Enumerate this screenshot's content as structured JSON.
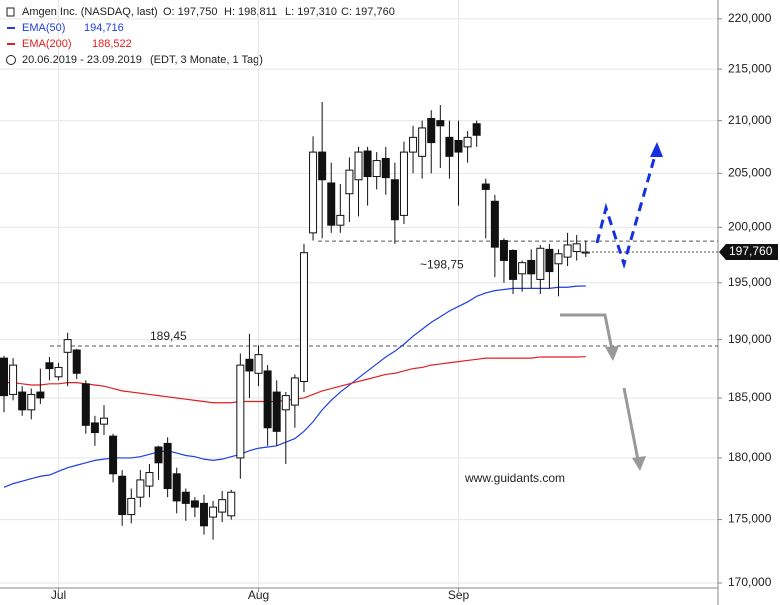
{
  "header": {
    "title": "Amgen Inc. (NASDAQ, last)",
    "open": "O: 197,750",
    "high": "H: 198,811",
    "low": "L: 197,310",
    "close": "C: 197,760",
    "range": "20.06.2019 - 23.09.2019",
    "range_note": "(EDT, 3 Monate, 1 Tag)"
  },
  "chart_data": {
    "type": "candlestick",
    "categories": [
      null,
      null,
      null,
      null,
      null,
      null,
      "Jul",
      null,
      null,
      null,
      null,
      null,
      null,
      null,
      null,
      null,
      null,
      null,
      null,
      null,
      null,
      null,
      null,
      null,
      null,
      null,
      null,
      null,
      "Aug",
      null,
      null,
      null,
      null,
      null,
      null,
      null,
      null,
      null,
      null,
      null,
      null,
      null,
      null,
      null,
      null,
      null,
      null,
      null,
      null,
      null,
      "Sep",
      null,
      null,
      null,
      null,
      null,
      null,
      null,
      null,
      null,
      null,
      null,
      null,
      null,
      null
    ],
    "open": [
      188.4,
      185.3,
      185.5,
      184.0,
      185.5,
      188.0,
      186.8,
      188.9,
      189.1,
      186.2,
      182.9,
      182.8,
      181.8,
      178.5,
      175.4,
      176.8,
      177.7,
      180.9,
      181.2,
      178.7,
      177.2,
      176.5,
      176.3,
      175.2,
      175.6,
      175.3,
      180.0,
      188.3,
      187.1,
      187.3,
      185.5,
      184.0,
      184.4,
      186.4,
      199.5,
      207.0,
      204.1,
      200.2,
      203.1,
      204.4,
      207.1,
      204.7,
      206.4,
      204.4,
      201.1,
      207.0,
      206.6,
      210.2,
      210.0,
      208.4,
      208.1,
      207.5,
      209.7,
      204.0,
      202.4,
      198.8,
      197.9,
      195.8,
      197.0,
      195.3,
      198.0,
      196.7,
      197.3,
      197.8,
      197.75
    ],
    "high": [
      188.6,
      188.4,
      186.0,
      185.8,
      187.5,
      188.5,
      188.0,
      190.6,
      189.2,
      186.5,
      183.5,
      184.4,
      182.0,
      179.0,
      177.5,
      179.0,
      179.5,
      181.0,
      181.7,
      179.2,
      177.5,
      176.8,
      177.0,
      176.5,
      177.3,
      177.4,
      188.8,
      190.5,
      189.5,
      187.8,
      186.5,
      185.5,
      187.0,
      198.5,
      208.5,
      211.8,
      206.0,
      204.0,
      206.5,
      207.5,
      207.5,
      207.0,
      207.5,
      206.0,
      208.0,
      209.5,
      210.0,
      211.0,
      211.5,
      210.0,
      210.0,
      209.0,
      210.0,
      204.5,
      203.0,
      199.0,
      198.0,
      197.0,
      198.0,
      198.4,
      198.5,
      198.0,
      199.5,
      199.3,
      198.811
    ],
    "low": [
      183.8,
      184.8,
      183.5,
      183.2,
      184.5,
      186.5,
      186.5,
      186.0,
      186.6,
      182.0,
      181.0,
      181.9,
      178.0,
      174.5,
      174.7,
      176.0,
      176.8,
      178.2,
      176.8,
      175.5,
      174.9,
      175.2,
      173.8,
      173.4,
      174.8,
      175.0,
      178.3,
      185.0,
      186.0,
      181.0,
      181.0,
      179.5,
      182.5,
      185.5,
      198.8,
      199.0,
      199.5,
      199.5,
      200.5,
      201.0,
      202.0,
      203.5,
      203.0,
      198.5,
      200.3,
      205.0,
      204.5,
      205.0,
      205.5,
      204.5,
      202.0,
      206.0,
      207.5,
      199.0,
      195.5,
      195.0,
      194.0,
      194.2,
      194.5,
      194.0,
      194.5,
      193.8,
      196.5,
      197.0,
      197.31
    ],
    "close": [
      185.2,
      187.8,
      184.0,
      185.3,
      185.0,
      187.5,
      187.6,
      190.0,
      187.1,
      182.7,
      182.1,
      183.3,
      178.7,
      175.4,
      176.7,
      178.2,
      178.8,
      179.6,
      177.5,
      176.5,
      176.3,
      176.0,
      174.5,
      176.0,
      176.6,
      177.2,
      187.8,
      187.3,
      188.7,
      182.5,
      182.2,
      185.2,
      186.7,
      197.7,
      207.0,
      204.4,
      200.2,
      201.1,
      205.3,
      207.0,
      204.7,
      206.2,
      204.6,
      200.7,
      207.0,
      208.4,
      209.3,
      207.9,
      209.5,
      206.6,
      207.0,
      208.4,
      208.6,
      203.5,
      198.2,
      197.0,
      195.3,
      196.8,
      195.8,
      198.1,
      196.0,
      197.6,
      198.4,
      198.5,
      197.76
    ],
    "series": [
      {
        "name": "EMA(50)",
        "legend_value": "194,716",
        "color": "#1f3fe0",
        "values": [
          177.6,
          177.9,
          178.1,
          178.3,
          178.5,
          178.6,
          178.9,
          179.2,
          179.4,
          179.6,
          179.8,
          179.9,
          180.0,
          180.0,
          180.0,
          180.1,
          180.3,
          180.5,
          180.6,
          180.4,
          180.2,
          180.1,
          179.9,
          179.8,
          179.9,
          180.1,
          180.3,
          180.6,
          180.8,
          180.9,
          181.0,
          181.3,
          181.6,
          182.2,
          183.0,
          184.0,
          184.8,
          185.5,
          186.1,
          186.7,
          187.3,
          187.9,
          188.5,
          189.0,
          189.6,
          190.3,
          190.9,
          191.5,
          192.0,
          192.5,
          192.9,
          193.3,
          193.8,
          194.1,
          194.3,
          194.4,
          194.5,
          194.5,
          194.5,
          194.5,
          194.5,
          194.6,
          194.6,
          194.7,
          194.716
        ]
      },
      {
        "name": "EMA(200)",
        "legend_value": "188,522",
        "color": "#e02020",
        "values": [
          186.3,
          186.3,
          186.2,
          186.1,
          186.1,
          186.2,
          186.2,
          186.3,
          186.3,
          186.2,
          186.1,
          186.0,
          185.8,
          185.6,
          185.5,
          185.4,
          185.3,
          185.2,
          185.1,
          185.0,
          184.9,
          184.8,
          184.7,
          184.6,
          184.6,
          184.6,
          184.7,
          184.7,
          184.7,
          184.7,
          184.7,
          184.8,
          184.9,
          185.0,
          185.3,
          185.6,
          185.8,
          186.0,
          186.2,
          186.4,
          186.6,
          186.8,
          187.0,
          187.1,
          187.3,
          187.5,
          187.6,
          187.8,
          187.9,
          188.0,
          188.1,
          188.2,
          188.3,
          188.4,
          188.4,
          188.4,
          188.4,
          188.4,
          188.4,
          188.5,
          188.5,
          188.5,
          188.5,
          188.5,
          188.522
        ]
      }
    ],
    "levels": [
      {
        "value": 189.45,
        "label": "189,45"
      },
      {
        "value": 198.75,
        "label": "~198,75"
      }
    ],
    "last_price": {
      "value": 197.76,
      "label": "197,760"
    },
    "ylim": [
      168.3,
      221.9
    ],
    "log_scale": true,
    "grid": true,
    "yticks": [
      {
        "value": 170,
        "label": "170,000"
      },
      {
        "value": 175,
        "label": "175,000"
      },
      {
        "value": 180,
        "label": "180,000"
      },
      {
        "value": 185,
        "label": "185,000"
      },
      {
        "value": 190,
        "label": "190,000"
      },
      {
        "value": 195,
        "label": "195,000"
      },
      {
        "value": 200,
        "label": "200,000"
      },
      {
        "value": 205,
        "label": "205,000"
      },
      {
        "value": 210,
        "label": "210,000"
      },
      {
        "value": 215,
        "label": "215,000"
      },
      {
        "value": 220,
        "label": "220,000"
      }
    ],
    "watermark": "www.guidants.com"
  }
}
